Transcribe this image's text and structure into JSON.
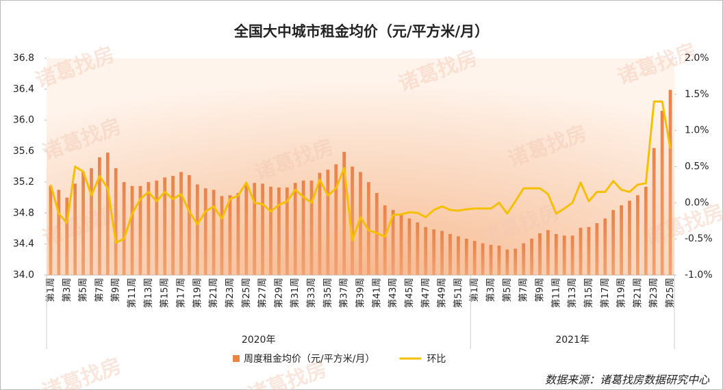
{
  "chart_data": {
    "type": "bar-line",
    "title": "全国大中城市租金均价（元/平方米/月）",
    "watermark": "诸葛找房",
    "source": "数据来源：诸葛找房数据研究中心",
    "categories": [
      "第1周",
      null,
      "第3周",
      null,
      "第5周",
      null,
      "第7周",
      null,
      "第9周",
      null,
      "第11周",
      null,
      "第13周",
      null,
      "第15周",
      null,
      "第17周",
      null,
      "第19周",
      null,
      "第21周",
      null,
      "第23周",
      null,
      "第25周",
      null,
      "第27周",
      null,
      "第29周",
      null,
      "第31周",
      null,
      "第33周",
      null,
      "第35周",
      null,
      "第37周",
      null,
      "第39周",
      null,
      "第41周",
      null,
      "第43周",
      null,
      "第45周",
      null,
      "第47周",
      null,
      "第49周",
      null,
      "第51周",
      null,
      "第1周",
      null,
      "第3周",
      null,
      "第5周",
      null,
      "第7周",
      null,
      "第9周",
      null,
      "第11周",
      null,
      "第13周",
      null,
      "第15周",
      null,
      "第17周",
      null,
      "第19周",
      null,
      "第21周",
      null,
      "第23周",
      null,
      "第25周"
    ],
    "groups": [
      {
        "name": "2020年",
        "size": 52
      },
      {
        "name": "2021年",
        "size": 25
      }
    ],
    "series": [
      {
        "name": "周度租金均价（元/平方米/月）",
        "color": "#e8834a",
        "type": "bar",
        "axis": "y",
        "values": [
          35.15,
          35.1,
          35.0,
          35.18,
          35.33,
          35.38,
          35.52,
          35.58,
          35.38,
          35.2,
          35.15,
          35.15,
          35.2,
          35.22,
          35.26,
          35.28,
          35.33,
          35.29,
          35.17,
          35.12,
          35.1,
          35.02,
          35.03,
          35.06,
          35.16,
          35.19,
          35.18,
          35.14,
          35.13,
          35.13,
          35.19,
          35.22,
          35.22,
          35.32,
          35.36,
          35.43,
          35.59,
          35.4,
          35.33,
          35.2,
          35.06,
          34.9,
          34.84,
          34.78,
          34.73,
          34.68,
          34.62,
          34.59,
          34.57,
          34.53,
          34.5,
          34.47,
          34.44,
          34.41,
          34.39,
          34.38,
          34.33,
          34.34,
          34.41,
          34.47,
          34.54,
          34.58,
          34.53,
          34.51,
          34.51,
          34.61,
          34.62,
          34.67,
          34.73,
          34.84,
          34.9,
          34.96,
          35.03,
          35.14,
          35.64,
          36.12,
          36.39
        ]
      },
      {
        "name": "环比",
        "color": "#f5c000",
        "type": "line",
        "axis": "y2",
        "values": [
          0.25,
          -0.15,
          -0.28,
          0.5,
          0.43,
          0.1,
          0.37,
          0.2,
          -0.55,
          -0.5,
          -0.15,
          0.05,
          0.15,
          0.02,
          0.15,
          0.05,
          0.12,
          -0.12,
          -0.3,
          -0.12,
          -0.05,
          -0.22,
          0.05,
          0.1,
          0.28,
          0.0,
          -0.02,
          -0.12,
          -0.03,
          0.02,
          0.18,
          0.08,
          0.0,
          0.32,
          0.1,
          0.2,
          0.48,
          -0.52,
          -0.2,
          -0.38,
          -0.42,
          -0.47,
          -0.17,
          -0.16,
          -0.13,
          -0.14,
          -0.2,
          -0.1,
          -0.05,
          -0.1,
          -0.11,
          -0.09,
          -0.08,
          -0.08,
          -0.08,
          0.0,
          -0.15,
          0.02,
          0.2,
          0.2,
          0.2,
          0.12,
          -0.15,
          -0.08,
          0.0,
          0.28,
          0.02,
          0.15,
          0.15,
          0.3,
          0.18,
          0.15,
          0.25,
          0.27,
          1.4,
          1.4,
          0.75
        ]
      }
    ],
    "ylim": [
      34.0,
      36.8
    ],
    "yticks": [
      {
        "value": 34.0,
        "label": "34.0"
      },
      34.4,
      34.8,
      35.2,
      35.6,
      {
        "value": 36.0,
        "label": "36.0"
      },
      36.4,
      36.8
    ],
    "y2lim": [
      -1.0,
      2.0
    ],
    "y2ticks": [
      {
        "value": -1.0,
        "label": "-1.0%"
      },
      {
        "value": -0.5,
        "label": "-0.5%"
      },
      {
        "value": 0.0,
        "label": "0.0%"
      },
      {
        "value": 0.5,
        "label": "0.5%"
      },
      {
        "value": 1.0,
        "label": "1.0%"
      },
      {
        "value": 1.5,
        "label": "1.5%"
      },
      {
        "value": 2.0,
        "label": "2.0%"
      }
    ],
    "legend": "bottom",
    "grid": false
  }
}
